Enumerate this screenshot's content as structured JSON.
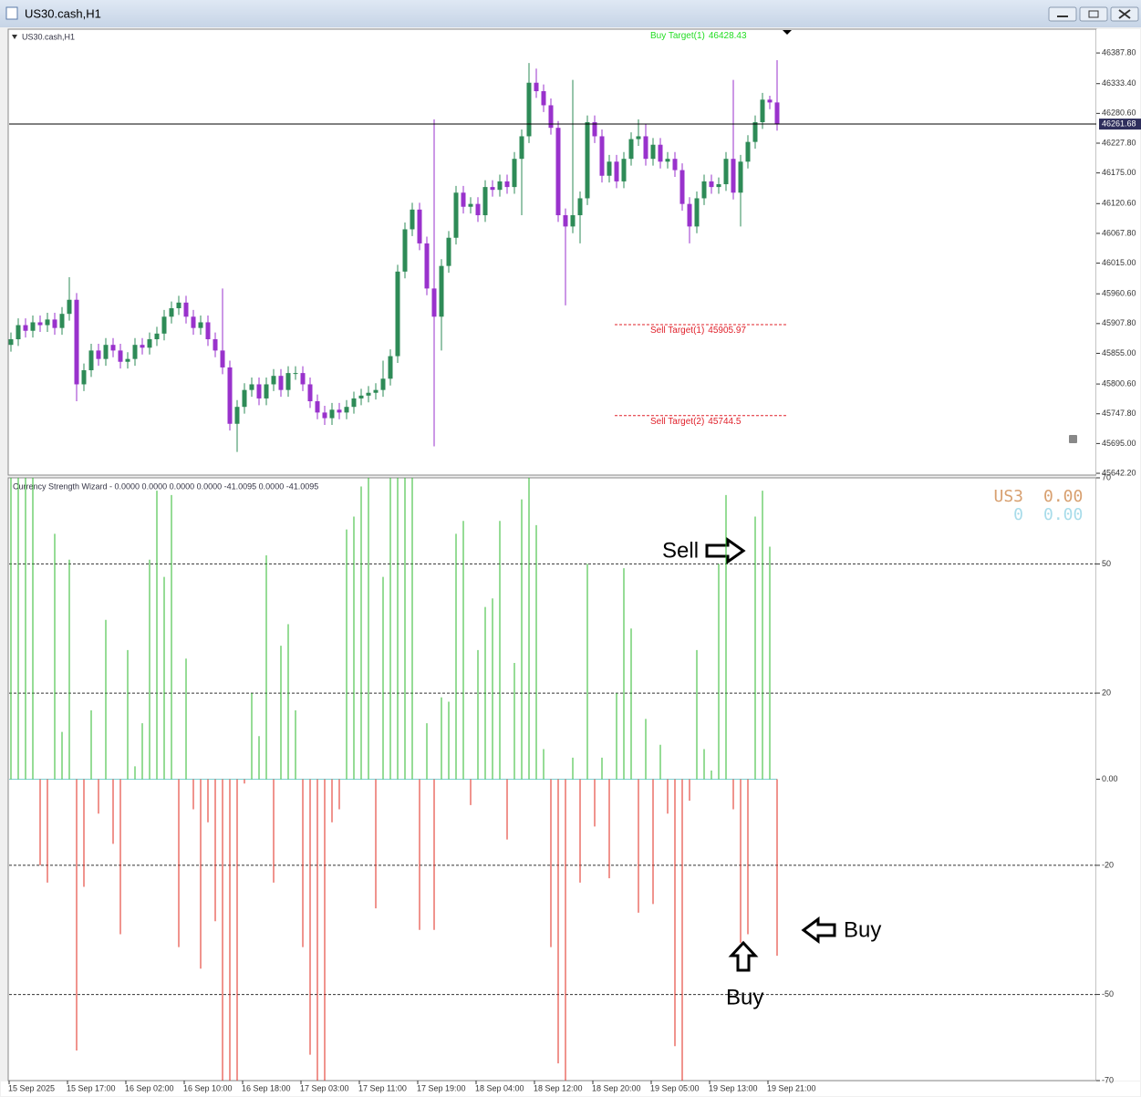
{
  "window": {
    "title": "US30.cash,H1"
  },
  "chart_data": [
    {
      "type": "candlestick",
      "title": "US30.cash,H1",
      "up_color": "#2e8b57",
      "down_color": "#9932cc",
      "categories": [
        "15 Sep 2025",
        null,
        null,
        null,
        null,
        null,
        null,
        null,
        "15 Sep 17:00",
        null,
        null,
        null,
        null,
        null,
        null,
        null,
        "16 Sep 02:00",
        null,
        null,
        null,
        null,
        null,
        null,
        null,
        "16 Sep 10:00",
        null,
        null,
        null,
        null,
        null,
        null,
        null,
        "16 Sep 18:00",
        null,
        null,
        null,
        null,
        null,
        null,
        null,
        "17 Sep 03:00",
        null,
        null,
        null,
        null,
        null,
        null,
        null,
        "17 Sep 11:00",
        null,
        null,
        null,
        null,
        null,
        null,
        null,
        "17 Sep 19:00",
        null,
        null,
        null,
        null,
        null,
        null,
        null,
        "18 Sep 04:00",
        null,
        null,
        null,
        null,
        null,
        null,
        null,
        "18 Sep 12:00",
        null,
        null,
        null,
        null,
        null,
        null,
        null,
        "18 Sep 20:00",
        null,
        null,
        null,
        null,
        null,
        null,
        null,
        "19 Sep 05:00",
        null,
        null,
        null,
        null,
        null,
        null,
        null,
        "19 Sep 13:00",
        null,
        null,
        null,
        null,
        null,
        null,
        null,
        "19 Sep 21:00",
        null
      ],
      "ohlc": [
        [
          45870,
          45892,
          45858,
          45880
        ],
        [
          45880,
          45917,
          45868,
          45905
        ],
        [
          45905,
          45917,
          45883,
          45895
        ],
        [
          45895,
          45922,
          45883,
          45910
        ],
        [
          45910,
          45922,
          45893,
          45905
        ],
        [
          45905,
          45927,
          45893,
          45915
        ],
        [
          45915,
          45927,
          45888,
          45900
        ],
        [
          45900,
          45937,
          45888,
          45925
        ],
        [
          45925,
          45990,
          45913,
          45950
        ],
        [
          45950,
          45962,
          45770,
          45800
        ],
        [
          45800,
          45837,
          45788,
          45825
        ],
        [
          45825,
          45872,
          45813,
          45860
        ],
        [
          45860,
          45872,
          45833,
          45845
        ],
        [
          45845,
          45882,
          45833,
          45870
        ],
        [
          45870,
          45882,
          45848,
          45860
        ],
        [
          45860,
          45872,
          45828,
          45840
        ],
        [
          45840,
          45857,
          45828,
          45845
        ],
        [
          45845,
          45882,
          45833,
          45870
        ],
        [
          45870,
          45882,
          45853,
          45865
        ],
        [
          45865,
          45892,
          45853,
          45880
        ],
        [
          45880,
          45902,
          45868,
          45890
        ],
        [
          45890,
          45932,
          45878,
          45920
        ],
        [
          45920,
          45947,
          45908,
          45935
        ],
        [
          45935,
          45957,
          45923,
          45945
        ],
        [
          45945,
          45957,
          45908,
          45920
        ],
        [
          45920,
          45932,
          45888,
          45900
        ],
        [
          45900,
          45922,
          45888,
          45910
        ],
        [
          45910,
          45922,
          45868,
          45880
        ],
        [
          45880,
          45892,
          45848,
          45860
        ],
        [
          45860,
          45970,
          45818,
          45830
        ],
        [
          45830,
          45842,
          45718,
          45730
        ],
        [
          45730,
          45772,
          45680,
          45760
        ],
        [
          45760,
          45802,
          45748,
          45790
        ],
        [
          45790,
          45812,
          45778,
          45800
        ],
        [
          45800,
          45812,
          45763,
          45775
        ],
        [
          45775,
          45812,
          45763,
          45800
        ],
        [
          45800,
          45827,
          45788,
          45815
        ],
        [
          45815,
          45827,
          45778,
          45790
        ],
        [
          45790,
          45832,
          45778,
          45820
        ],
        [
          45820,
          45832,
          45808,
          45820
        ],
        [
          45820,
          45832,
          45788,
          45800
        ],
        [
          45800,
          45812,
          45758,
          45770
        ],
        [
          45770,
          45782,
          45738,
          45750
        ],
        [
          45750,
          45762,
          45728,
          45740
        ],
        [
          45740,
          45767,
          45728,
          45755
        ],
        [
          45755,
          45767,
          45738,
          45750
        ],
        [
          45750,
          45772,
          45738,
          45760
        ],
        [
          45760,
          45787,
          45748,
          45775
        ],
        [
          45775,
          45792,
          45763,
          45780
        ],
        [
          45780,
          45797,
          45768,
          45785
        ],
        [
          45785,
          45802,
          45773,
          45790
        ],
        [
          45790,
          45842,
          45778,
          45810
        ],
        [
          45810,
          45862,
          45798,
          45850
        ],
        [
          45850,
          46012,
          45838,
          46000
        ],
        [
          46000,
          46087,
          45988,
          46075
        ],
        [
          46075,
          46122,
          46063,
          46110
        ],
        [
          46110,
          46122,
          46038,
          46050
        ],
        [
          46050,
          46062,
          45958,
          45970
        ],
        [
          45970,
          46270,
          45690,
          45920
        ],
        [
          45920,
          46022,
          45860,
          46010
        ],
        [
          46010,
          46072,
          45998,
          46060
        ],
        [
          46060,
          46152,
          46048,
          46140
        ],
        [
          46140,
          46152,
          46103,
          46115
        ],
        [
          46115,
          46132,
          46103,
          46120
        ],
        [
          46120,
          46132,
          46088,
          46100
        ],
        [
          46100,
          46162,
          46088,
          46150
        ],
        [
          46150,
          46162,
          46133,
          46145
        ],
        [
          46145,
          46172,
          46133,
          46160
        ],
        [
          46160,
          46172,
          46138,
          46150
        ],
        [
          46150,
          46212,
          46138,
          46200
        ],
        [
          46200,
          46252,
          46100,
          46240
        ],
        [
          46240,
          46370,
          46228,
          46335
        ],
        [
          46335,
          46360,
          46308,
          46320
        ],
        [
          46320,
          46332,
          46283,
          46295
        ],
        [
          46295,
          46307,
          46243,
          46255
        ],
        [
          46255,
          46267,
          46088,
          46100
        ],
        [
          46100,
          46112,
          45940,
          46080
        ],
        [
          46080,
          46340,
          46068,
          46100
        ],
        [
          46100,
          46142,
          46050,
          46130
        ],
        [
          46130,
          46277,
          46118,
          46265
        ],
        [
          46265,
          46277,
          46228,
          46240
        ],
        [
          46240,
          46252,
          46158,
          46170
        ],
        [
          46170,
          46207,
          46158,
          46195
        ],
        [
          46195,
          46207,
          46148,
          46160
        ],
        [
          46160,
          46212,
          46148,
          46200
        ],
        [
          46200,
          46247,
          46188,
          46235
        ],
        [
          46235,
          46270,
          46223,
          46240
        ],
        [
          46240,
          46262,
          46188,
          46200
        ],
        [
          46200,
          46237,
          46188,
          46225
        ],
        [
          46225,
          46237,
          46183,
          46195
        ],
        [
          46195,
          46212,
          46183,
          46200
        ],
        [
          46200,
          46212,
          46168,
          46180
        ],
        [
          46180,
          46192,
          46108,
          46120
        ],
        [
          46120,
          46132,
          46050,
          46080
        ],
        [
          46080,
          46142,
          46068,
          46130
        ],
        [
          46130,
          46172,
          46118,
          46160
        ],
        [
          46160,
          46172,
          46138,
          46150
        ],
        [
          46150,
          46167,
          46138,
          46155
        ],
        [
          46155,
          46212,
          46143,
          46200
        ],
        [
          46200,
          46340,
          46128,
          46140
        ],
        [
          46140,
          46207,
          46080,
          46195
        ],
        [
          46195,
          46242,
          46183,
          46230
        ],
        [
          46230,
          46277,
          46218,
          46265
        ],
        [
          46265,
          46317,
          46253,
          46305
        ],
        [
          46305,
          46312,
          46288,
          46300
        ],
        [
          46300,
          46375,
          46250,
          46262
        ]
      ],
      "ylim": [
        45639,
        46430
      ],
      "yticks": [
        {
          "value": 46387.8,
          "label": "46387.80"
        },
        {
          "value": 46333.4,
          "label": "46333.40"
        },
        {
          "value": 46280.6,
          "label": "46280.60"
        },
        {
          "value": 46227.8,
          "label": "46227.80"
        },
        {
          "value": 46175,
          "label": "46175.00"
        },
        {
          "value": 46120.6,
          "label": "46120.60"
        },
        {
          "value": 46067.8,
          "label": "46067.80"
        },
        {
          "value": 46015,
          "label": "46015.00"
        },
        {
          "value": 45960.6,
          "label": "45960.60"
        },
        {
          "value": 45907.8,
          "label": "45907.80"
        },
        {
          "value": 45855,
          "label": "45855.00"
        },
        {
          "value": 45800.6,
          "label": "45800.60"
        },
        {
          "value": 45747.8,
          "label": "45747.80"
        },
        {
          "value": 45695,
          "label": "45695.00"
        },
        {
          "value": 45642.2,
          "label": "45642.20"
        }
      ],
      "current_price": 46261.68,
      "targets": [
        {
          "label": "Buy Target(1)",
          "value": 46428.43,
          "color": "#22dd22"
        },
        {
          "label": "Sell Target(1)",
          "value": 45905.97,
          "color": "#e0202a"
        },
        {
          "label": "Sell Target(2)",
          "value": 45744.5,
          "color": "#e0202a"
        }
      ]
    },
    {
      "type": "bar",
      "title": "Currency Strength Wizard -  0.0000 0.0000 0.0000 0.0000 -41.0095 0.0000 -41.0095",
      "up_color": "#2db82d",
      "down_color": "#e0281e",
      "values": [
        70,
        70,
        70,
        70,
        -20,
        -24,
        57,
        11,
        51,
        -63,
        -25,
        16,
        -8,
        37,
        -15,
        -36,
        30,
        3,
        13,
        51,
        67,
        47,
        66,
        -39,
        28,
        -7,
        -44,
        -10,
        -33,
        -70,
        -70,
        -70,
        -1,
        20,
        10,
        52,
        -24,
        31,
        36,
        16,
        -39,
        -64,
        -70,
        -70,
        -10,
        -7,
        58,
        61,
        68,
        70,
        -30,
        47,
        70,
        70,
        70,
        70,
        -35,
        13,
        -35,
        19,
        18,
        57,
        60,
        -6,
        30,
        40,
        42,
        60,
        -14,
        27,
        65,
        70,
        59,
        7,
        -39,
        -66,
        -70,
        5,
        -24,
        50,
        -11,
        5,
        -23,
        20,
        49,
        35,
        -31,
        14,
        -29,
        8,
        -8,
        -62,
        -70,
        -5,
        30,
        7,
        2,
        50,
        66,
        -7,
        -38,
        -36,
        61,
        67,
        54,
        -41
      ],
      "ylim": [
        -70,
        70
      ],
      "yticks": [
        70,
        50,
        20,
        {
          "value": 0,
          "label": "0.00"
        },
        -20,
        -50,
        -70
      ],
      "levels": [
        50,
        20,
        -20,
        -50
      ],
      "corner_labels": [
        {
          "name": "US3",
          "value": "0.00",
          "color": "#d8a070"
        },
        {
          "name": "0",
          "value": "0.00",
          "color": "#a8dcea"
        }
      ],
      "annotations": [
        "Sell",
        "Buy",
        "Buy"
      ]
    }
  ]
}
